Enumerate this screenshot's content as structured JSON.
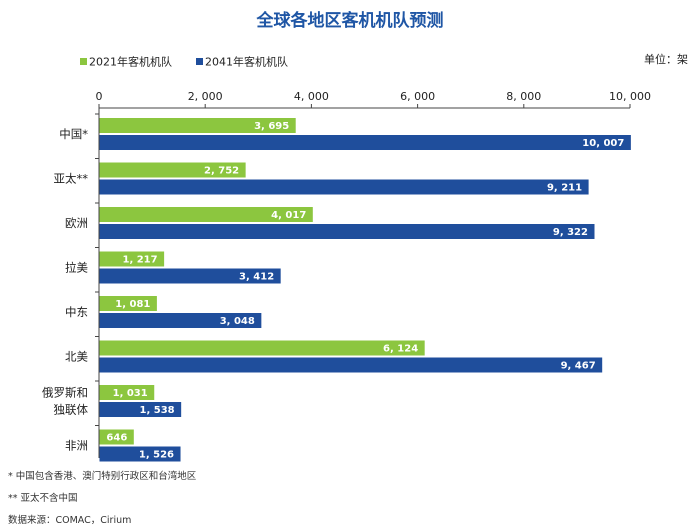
{
  "chart_data": {
    "type": "bar",
    "orientation": "horizontal",
    "title": "全球各地区客机机队预测",
    "unit_label": "单位：架",
    "categories": [
      "中国*",
      "亚太**",
      "欧洲",
      "拉美",
      "中东",
      "北美",
      "俄罗斯和\n独联体",
      "非洲"
    ],
    "series": [
      {
        "name": "2021年客机机队",
        "color": "#8cc63f",
        "values": [
          3695,
          2752,
          4017,
          1217,
          1081,
          6124,
          1031,
          646
        ]
      },
      {
        "name": "2041年客机机队",
        "color": "#1f4e9c",
        "values": [
          10007,
          9211,
          9322,
          3412,
          3048,
          9467,
          1538,
          1526
        ]
      }
    ],
    "value_labels": [
      [
        "3, 695",
        "2, 752",
        "4, 017",
        "1, 217",
        "1, 081",
        "6, 124",
        "1, 031",
        "646"
      ],
      [
        "10, 007",
        "9, 211",
        "9, 322",
        "3, 412",
        "3, 048",
        "9, 467",
        "1, 538",
        "1, 526"
      ]
    ],
    "xlim": [
      0,
      10000
    ],
    "xticks": [
      0,
      2000,
      4000,
      6000,
      8000,
      10000
    ],
    "xtick_labels": [
      "0",
      "2, 000",
      "4, 000",
      "6, 000",
      "8, 000",
      "10, 000"
    ],
    "x_axis_position": "top",
    "legend_position": "top-left"
  },
  "footnotes": {
    "note1": "* 中国包含香港、澳门特别行政区和台湾地区",
    "note2": "** 亚太不含中国",
    "source": "数据来源：COMAC，Cirium"
  }
}
